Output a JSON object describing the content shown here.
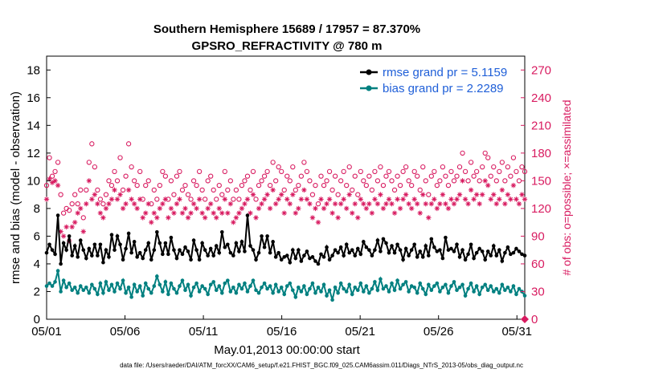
{
  "chart_data": {
    "type": "line",
    "title": "Southern Hemisphere 15689 / 17957 = 87.370%",
    "subtitle": "GPSRO_REFRACTIVITY @ 780 m",
    "xlabel": "May.01,2013 00:00:00 start",
    "ylabel": "rmse and bias (model - observation)",
    "y2label": "# of obs: o=possible; ×=assimilated",
    "footer": "data file: /Users/raeder/DAI/ATM_forcXX/CAM6_setup/f.e21.FHIST_BGC.f09_025.CAM6assim.011/Diags_NTrS_2013-05/obs_diag_output.nc",
    "x_ticks": [
      "05/01",
      "05/06",
      "05/11",
      "05/16",
      "05/21",
      "05/26",
      "05/31"
    ],
    "x_tick_days": [
      1,
      6,
      11,
      16,
      21,
      26,
      31
    ],
    "xlim": [
      1,
      31.5
    ],
    "ylim": [
      0,
      19
    ],
    "y_ticks": [
      "0",
      "2",
      "4",
      "6",
      "8",
      "10",
      "12",
      "14",
      "16",
      "18"
    ],
    "y2lim": [
      0,
      285
    ],
    "y2_ticks": [
      "0",
      "30",
      "60",
      "90",
      "120",
      "150",
      "180",
      "210",
      "240",
      "270"
    ],
    "legend_position": "top-right",
    "colors": {
      "rmse": "#000000",
      "bias": "#008080",
      "obs": "#d81b60"
    },
    "series": [
      {
        "name": "rmse grand pr = 5.1159",
        "key": "rmse",
        "values": [
          4.8,
          5.4,
          5.0,
          4.7,
          7.5,
          4.0,
          5.5,
          5.0,
          6.0,
          4.6,
          5.3,
          4.5,
          5.7,
          5.0,
          4.4,
          5.1,
          4.6,
          5.4,
          4.6,
          5.4,
          4.1,
          5.0,
          4.5,
          6.1,
          5.0,
          6.0,
          5.4,
          4.3,
          5.1,
          6.2,
          4.8,
          5.6,
          4.5,
          4.8,
          4.4,
          5.0,
          5.5,
          4.3,
          5.0,
          6.3,
          5.5,
          4.7,
          5.5,
          4.7,
          5.9,
          5.0,
          4.4,
          5.0,
          4.7,
          5.2,
          4.9,
          4.3,
          5.7,
          5.0,
          4.3,
          5.5,
          5.0,
          4.6,
          5.1,
          4.6,
          5.3,
          4.8,
          6.3,
          5.2,
          5.4,
          4.8,
          4.6,
          5.5,
          4.9,
          5.6,
          4.9,
          7.5,
          5.3,
          5.0,
          4.3,
          4.8,
          6.0,
          5.2,
          6.0,
          4.8,
          5.6,
          4.5,
          4.8,
          4.3,
          4.5,
          4.6,
          4.1,
          5.0,
          4.4,
          5.0,
          4.2,
          4.6,
          4.9,
          4.4,
          4.5,
          4.2,
          4.0,
          4.7,
          4.5,
          5.2,
          4.3,
          4.6,
          5.0,
          4.8,
          5.2,
          4.6,
          5.4,
          4.8,
          5.0,
          4.6,
          5.1,
          4.7,
          5.6,
          5.2,
          5.0,
          4.6,
          5.0,
          5.7,
          4.9,
          5.8,
          5.5,
          4.8,
          5.3,
          4.8,
          5.4,
          5.0,
          4.3,
          5.1,
          4.6,
          5.0,
          5.4,
          4.5,
          4.9,
          4.5,
          5.3,
          4.6,
          5.8,
          5.2,
          4.9,
          5.0,
          4.4,
          5.9,
          5.0,
          5.1,
          4.9,
          5.4,
          4.5,
          5.0,
          4.3,
          4.7,
          5.4,
          4.4,
          4.8,
          5.1,
          4.9,
          4.3,
          4.9,
          4.6,
          5.3,
          4.6,
          5.0,
          4.2,
          4.8,
          5.2,
          4.7,
          4.8,
          5.1,
          4.9,
          4.7,
          4.6
        ]
      },
      {
        "name": "bias grand pr = 2.2289",
        "key": "bias",
        "values": [
          2.4,
          2.6,
          2.4,
          2.7,
          3.5,
          2.0,
          2.8,
          2.3,
          2.6,
          2.1,
          2.3,
          1.9,
          2.4,
          2.1,
          2.3,
          1.9,
          2.5,
          2.2,
          1.8,
          2.6,
          1.9,
          2.7,
          2.1,
          2.5,
          2.0,
          2.6,
          2.2,
          2.8,
          1.9,
          2.3,
          1.6,
          2.5,
          2.0,
          2.4,
          1.7,
          2.6,
          2.2,
          1.9,
          2.4,
          3.1,
          2.5,
          2.0,
          2.7,
          1.8,
          2.6,
          2.2,
          1.9,
          2.4,
          2.8,
          2.1,
          2.5,
          1.7,
          2.3,
          2.6,
          2.0,
          2.4,
          2.2,
          1.8,
          2.5,
          2.7,
          2.1,
          2.4,
          1.9,
          2.6,
          2.8,
          2.0,
          2.3,
          1.9,
          2.5,
          2.2,
          2.6,
          2.0,
          2.4,
          2.8,
          2.1,
          1.9,
          2.3,
          2.6,
          2.2,
          2.4,
          1.9,
          2.5,
          2.0,
          2.3,
          1.8,
          2.4,
          2.6,
          2.1,
          1.6,
          2.3,
          2.0,
          2.4,
          1.8,
          2.2,
          2.6,
          1.9,
          2.3,
          2.0,
          2.5,
          1.7,
          2.1,
          1.4,
          2.3,
          1.9,
          2.6,
          2.2,
          2.0,
          2.5,
          1.8,
          2.3,
          2.1,
          2.6,
          2.0,
          2.4,
          1.9,
          2.2,
          2.7,
          2.1,
          2.9,
          2.2,
          2.4,
          2.0,
          2.6,
          2.1,
          2.8,
          2.2,
          2.5,
          2.7,
          2.0,
          2.4,
          2.3,
          1.9,
          2.6,
          2.2,
          1.8,
          2.5,
          2.1,
          2.4,
          2.6,
          2.0,
          2.3,
          2.5,
          1.9,
          2.4,
          2.7,
          2.1,
          2.3,
          2.5,
          1.7,
          2.2,
          2.6,
          2.0,
          2.4,
          1.8,
          2.3,
          2.5,
          2.1,
          2.4,
          2.0,
          2.2,
          1.9,
          2.5,
          2.1,
          2.3,
          2.0,
          2.4,
          1.8,
          2.2,
          2.0,
          1.7
        ]
      },
      {
        "name": "obs possible",
        "key": "possible",
        "marker": "o",
        "values": [
          145,
          175,
          155,
          160,
          170,
          135,
          115,
          120,
          118,
          125,
          135,
          125,
          140,
          110,
          140,
          170,
          190,
          165,
          140,
          130,
          125,
          135,
          150,
          145,
          160,
          150,
          175,
          140,
          155,
          190,
          165,
          150,
          145,
          160,
          130,
          145,
          150,
          125,
          140,
          130,
          145,
          160,
          155,
          130,
          150,
          135,
          155,
          160,
          140,
          145,
          135,
          130,
          150,
          145,
          160,
          140,
          130,
          150,
          155,
          140,
          130,
          145,
          135,
          160,
          140,
          150,
          130,
          140,
          130,
          145,
          150,
          155,
          140,
          160,
          130,
          145,
          150,
          155,
          160,
          145,
          170,
          150,
          165,
          160,
          140,
          155,
          150,
          165,
          140,
          145,
          155,
          170,
          160,
          150,
          135,
          145,
          125,
          155,
          145,
          150,
          160,
          140,
          155,
          135,
          150,
          160,
          145,
          165,
          140,
          155,
          135,
          160,
          150,
          145,
          155,
          140,
          160,
          150,
          165,
          145,
          155,
          160,
          150,
          140,
          155,
          145,
          160,
          165,
          150,
          145,
          160,
          155,
          140,
          165,
          150,
          135,
          155,
          160,
          145,
          150,
          165,
          155,
          145,
          160,
          150,
          155,
          165,
          180,
          160,
          150,
          170,
          155,
          160,
          150,
          165,
          180,
          175,
          155,
          165,
          150,
          160,
          170,
          150,
          165,
          155,
          175,
          160,
          150,
          165,
          160
        ]
      },
      {
        "name": "obs assimilated",
        "key": "assimilated",
        "marker": "*",
        "values": [
          130,
          152,
          148,
          150,
          145,
          95,
          90,
          100,
          85,
          100,
          105,
          115,
          120,
          95,
          125,
          150,
          130,
          135,
          125,
          115,
          110,
          120,
          125,
          130,
          140,
          130,
          135,
          120,
          125,
          140,
          130,
          125,
          120,
          130,
          110,
          115,
          125,
          105,
          115,
          110,
          120,
          125,
          130,
          110,
          120,
          115,
          125,
          130,
          115,
          120,
          110,
          115,
          125,
          120,
          130,
          115,
          110,
          120,
          125,
          115,
          110,
          120,
          115,
          130,
          115,
          125,
          105,
          110,
          115,
          120,
          125,
          130,
          115,
          135,
          110,
          120,
          125,
          130,
          135,
          120,
          140,
          125,
          130,
          135,
          115,
          130,
          125,
          135,
          115,
          120,
          130,
          140,
          130,
          125,
          110,
          120,
          105,
          130,
          120,
          125,
          130,
          115,
          125,
          110,
          125,
          130,
          120,
          135,
          115,
          125,
          110,
          130,
          125,
          120,
          125,
          115,
          130,
          125,
          135,
          120,
          125,
          130,
          125,
          115,
          130,
          120,
          130,
          135,
          125,
          120,
          130,
          125,
          115,
          135,
          125,
          110,
          125,
          130,
          120,
          125,
          135,
          125,
          120,
          130,
          125,
          130,
          135,
          150,
          130,
          125,
          140,
          130,
          135,
          125,
          135,
          150,
          145,
          130,
          135,
          125,
          130,
          140,
          125,
          135,
          130,
          145,
          130,
          125,
          135,
          130
        ]
      }
    ]
  }
}
